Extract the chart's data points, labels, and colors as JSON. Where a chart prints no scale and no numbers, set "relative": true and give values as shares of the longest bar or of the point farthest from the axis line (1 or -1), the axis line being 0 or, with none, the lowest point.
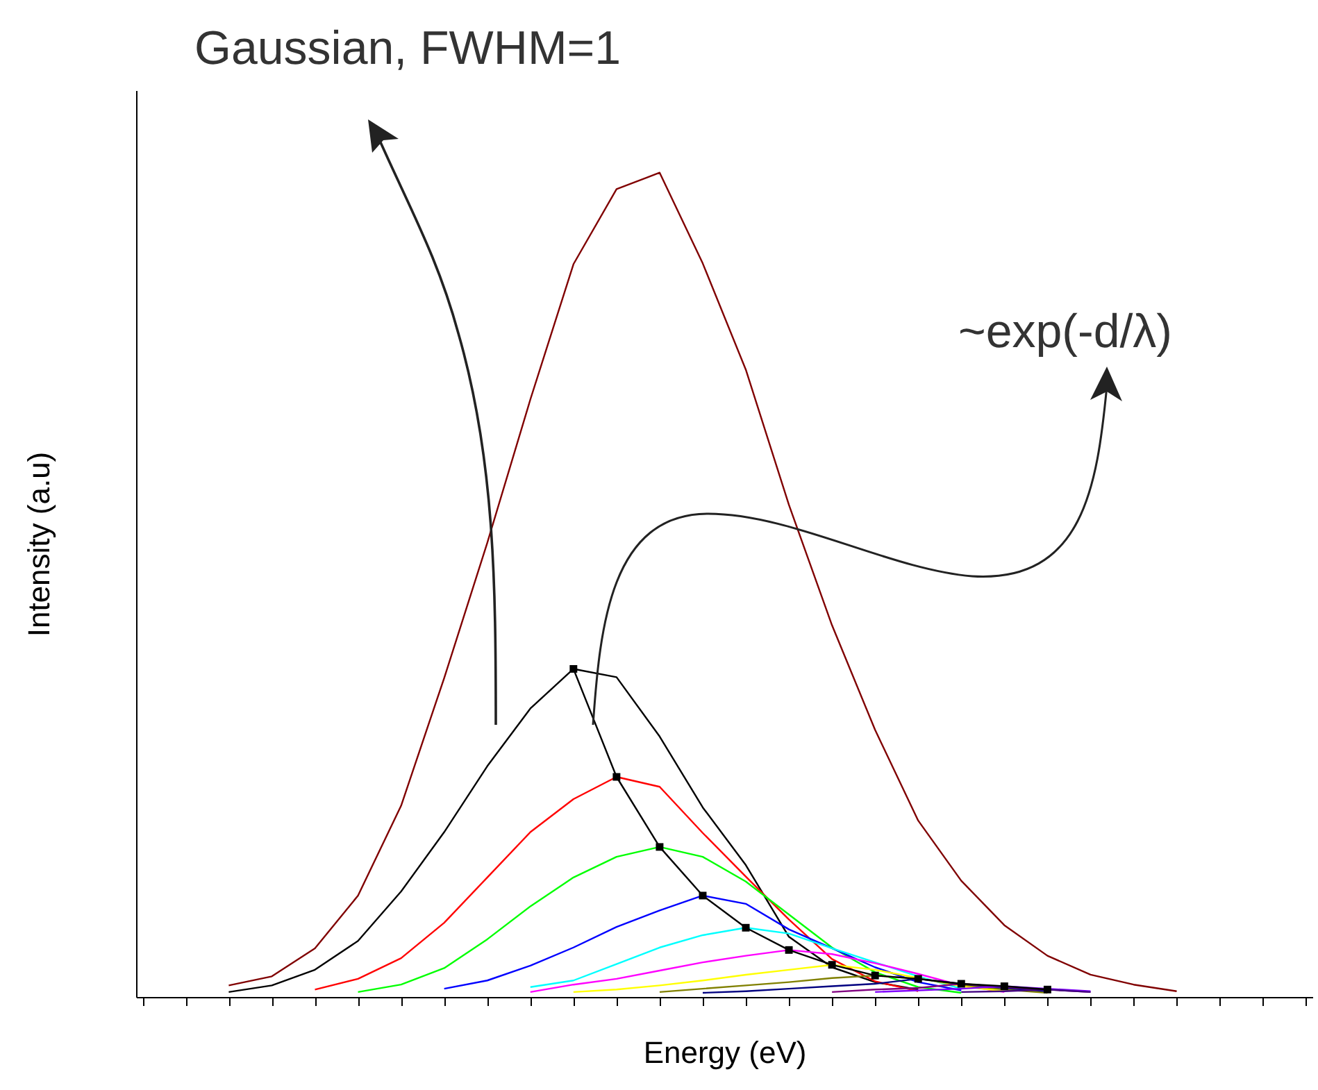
{
  "chart_data": {
    "type": "line",
    "relative": true,
    "xlabel": "Energy (eV)",
    "ylabel": "Intensity (a.u)",
    "annotations": [
      "Gaussian, FWHM=1",
      "~exp(-d/λ)"
    ],
    "categories": [
      null,
      null,
      null,
      null,
      null,
      null,
      null,
      null,
      null,
      null,
      null,
      null,
      null,
      null,
      null,
      null,
      null,
      null,
      null,
      null,
      null,
      null,
      null,
      null,
      null,
      null,
      null,
      null
    ],
    "series": [
      {
        "color": "#800000",
        "values": [
          null,
          null,
          0.014,
          0.025,
          0.059,
          0.123,
          0.232,
          0.387,
          0.551,
          0.725,
          0.889,
          0.98,
          1,
          0.89,
          0.761,
          0.597,
          0.451,
          0.324,
          0.214,
          0.141,
          0.087,
          0.05,
          0.027,
          0.015,
          0.007,
          null,
          null,
          null
        ]
      },
      {
        "color": "#000000",
        "values": [
          null,
          null,
          0.006,
          0.014,
          0.033,
          0.068,
          0.128,
          0.2,
          0.28,
          0.35,
          0.398,
          0.388,
          0.316,
          0.23,
          0.16,
          0.073,
          0.036,
          0.018,
          0.009,
          null,
          null,
          null,
          null,
          null,
          null,
          null,
          null,
          null
        ]
      },
      {
        "color": "#ff0000",
        "values": [
          null,
          null,
          null,
          null,
          0.009,
          0.022,
          0.047,
          0.09,
          0.145,
          0.2,
          0.24,
          0.267,
          0.255,
          0.199,
          0.146,
          0.094,
          0.046,
          0.019,
          0.007,
          null,
          null,
          null,
          null,
          null,
          null,
          null,
          null,
          null
        ]
      },
      {
        "color": "#00ff00",
        "values": [
          null,
          null,
          null,
          null,
          null,
          0.006,
          0.015,
          0.035,
          0.07,
          0.11,
          0.145,
          0.17,
          0.182,
          0.17,
          0.14,
          0.1,
          0.06,
          0.03,
          0.012,
          0.005,
          null,
          null,
          null,
          null,
          null,
          null,
          null,
          null
        ]
      },
      {
        "color": "#0000ff",
        "values": [
          null,
          null,
          null,
          null,
          null,
          null,
          null,
          0.01,
          0.02,
          0.038,
          0.06,
          0.085,
          0.105,
          0.123,
          0.113,
          0.082,
          0.059,
          0.036,
          0.018,
          0.008,
          null,
          null,
          null,
          null,
          null,
          null,
          null,
          null
        ]
      },
      {
        "color": "#00ffff",
        "values": [
          null,
          null,
          null,
          null,
          null,
          null,
          null,
          null,
          null,
          0.012,
          0.02,
          0.04,
          0.06,
          0.075,
          0.084,
          0.077,
          0.059,
          0.042,
          0.025,
          0.01,
          null,
          null,
          null,
          null,
          null,
          null,
          null,
          null
        ]
      },
      {
        "color": "#ff00ff",
        "values": [
          null,
          null,
          null,
          null,
          null,
          null,
          null,
          null,
          null,
          0.006,
          0.015,
          0.022,
          0.032,
          0.042,
          0.05,
          0.057,
          0.052,
          0.041,
          0.028,
          0.014,
          0.006,
          null,
          null,
          null,
          null,
          null,
          null,
          null
        ]
      },
      {
        "color": "#ffff00",
        "values": [
          null,
          null,
          null,
          null,
          null,
          null,
          null,
          null,
          null,
          null,
          0.006,
          0.009,
          0.014,
          0.02,
          0.027,
          0.033,
          0.039,
          0.033,
          0.023,
          0.013,
          0.007,
          null,
          null,
          null,
          null,
          null,
          null,
          null
        ]
      },
      {
        "color": "#808000",
        "values": [
          null,
          null,
          null,
          null,
          null,
          null,
          null,
          null,
          null,
          null,
          null,
          null,
          0.006,
          0.01,
          0.014,
          0.018,
          0.023,
          0.026,
          0.022,
          0.015,
          0.009,
          0.005,
          null,
          null,
          null,
          null,
          null,
          null
        ]
      },
      {
        "color": "#000080",
        "values": [
          null,
          null,
          null,
          null,
          null,
          null,
          null,
          null,
          null,
          null,
          null,
          null,
          null,
          0.005,
          0.007,
          0.01,
          0.013,
          0.016,
          0.022,
          0.016,
          0.011,
          0.007,
          null,
          null,
          null,
          null,
          null,
          null
        ]
      },
      {
        "color": "#800080",
        "values": [
          null,
          null,
          null,
          null,
          null,
          null,
          null,
          null,
          null,
          null,
          null,
          null,
          null,
          null,
          null,
          null,
          0.006,
          0.009,
          0.011,
          0.016,
          0.012,
          0.009,
          0.006,
          null,
          null,
          null,
          null,
          null
        ]
      },
      {
        "color": "#8000ff",
        "values": [
          null,
          null,
          null,
          null,
          null,
          null,
          null,
          null,
          null,
          null,
          null,
          null,
          null,
          null,
          null,
          null,
          null,
          0.006,
          0.008,
          0.01,
          0.013,
          0.01,
          0.007,
          null,
          null,
          null,
          null,
          null
        ]
      },
      {
        "color": "#400080",
        "values": [
          null,
          null,
          null,
          null,
          null,
          null,
          null,
          null,
          null,
          null,
          null,
          null,
          null,
          null,
          null,
          null,
          null,
          null,
          null,
          0.006,
          0.007,
          0.009,
          0.006,
          null,
          null,
          null,
          null,
          null
        ]
      },
      {
        "color": "#000000",
        "marker": "square",
        "values": [
          null,
          null,
          null,
          null,
          null,
          null,
          null,
          null,
          null,
          null,
          0.398,
          0.267,
          0.182,
          0.123,
          0.084,
          0.057,
          0.039,
          0.026,
          0.022,
          0.016,
          0.013,
          0.009,
          null,
          null,
          null,
          null,
          null,
          null
        ]
      }
    ]
  }
}
